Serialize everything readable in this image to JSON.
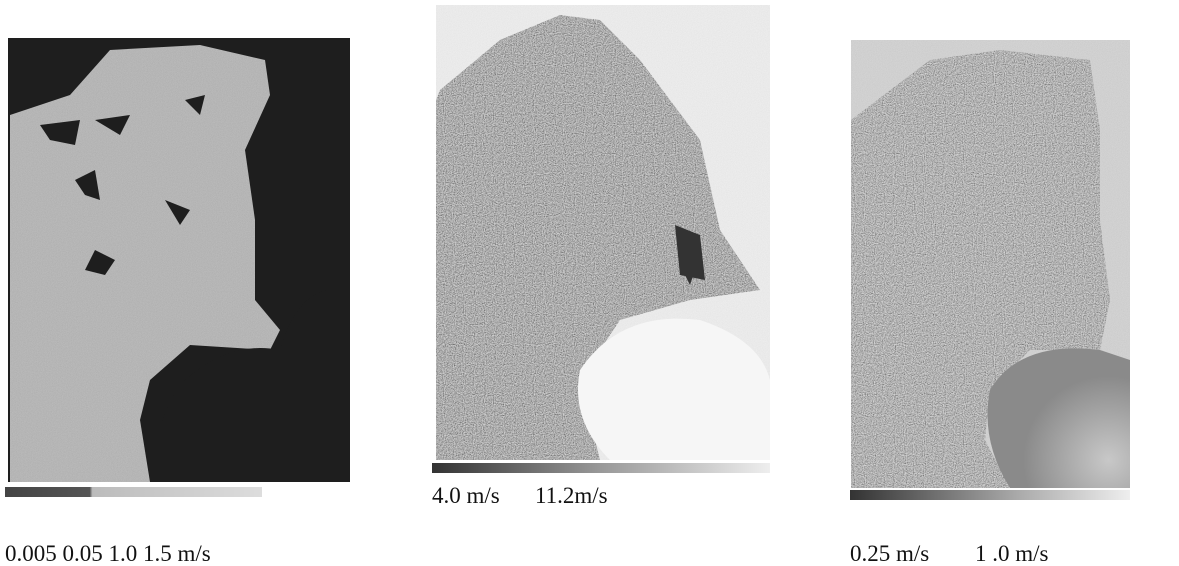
{
  "panels": [
    {
      "labels": [
        "0.005 0.05 1.0 1.5 m/s"
      ]
    },
    {
      "labels": [
        "4.0 m/s",
        "11.2m/s"
      ]
    },
    {
      "labels": [
        "0.25 m/s",
        "1 .0 m/s"
      ]
    }
  ]
}
